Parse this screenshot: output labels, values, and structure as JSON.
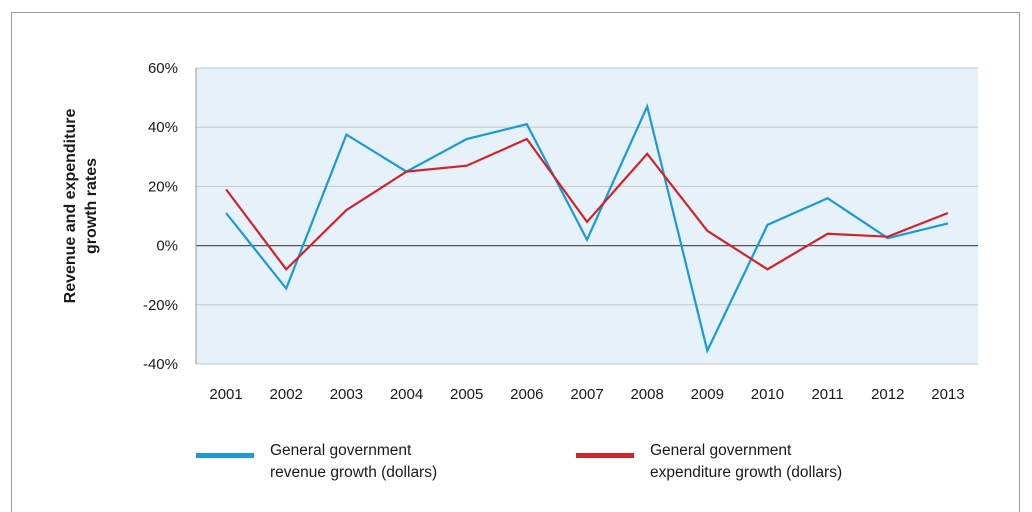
{
  "chart_data": {
    "type": "line",
    "title": "",
    "ylabel": "Revenue and expenditure growth rates",
    "xlabel": "",
    "x": [
      "2001",
      "2002",
      "2003",
      "2004",
      "2005",
      "2006",
      "2007",
      "2008",
      "2009",
      "2010",
      "2011",
      "2012",
      "2013"
    ],
    "ylim": [
      -40,
      60
    ],
    "yticks": [
      60,
      40,
      20,
      0,
      -20,
      -40
    ],
    "ytick_labels": [
      "60%",
      "40%",
      "20%",
      "0%",
      "-20%",
      "-40%"
    ],
    "grid": true,
    "legend_position": "bottom",
    "series": [
      {
        "name": "General government revenue growth (dollars)",
        "legend_lines": [
          "General government",
          "revenue growth (dollars)"
        ],
        "color": "#1a9ad6",
        "values": [
          11,
          -14.5,
          37.5,
          25,
          36,
          41,
          2,
          47,
          -35.5,
          7,
          16,
          2.5,
          7.5
        ]
      },
      {
        "name": "General government expenditure growth (dollars)",
        "legend_lines": [
          "General government",
          "expenditure growth (dollars)"
        ],
        "color": "#d2232a",
        "values": [
          19,
          -8,
          12,
          25,
          27,
          36,
          8,
          31,
          5,
          -8,
          4,
          3,
          11
        ]
      }
    ],
    "plot_background": "#e6f1f9",
    "grid_color": "#c8c8c8"
  }
}
